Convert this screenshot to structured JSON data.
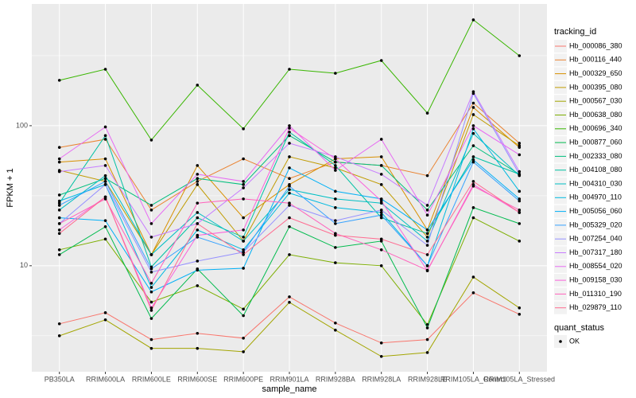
{
  "chart_data": {
    "type": "line",
    "x_label": "sample_name",
    "y_label": "FPKM + 1",
    "legend_title": "tracking_id",
    "point_legend": {
      "title": "quant_status",
      "labels": [
        "OK"
      ],
      "color": "#000000"
    },
    "log_scale": true,
    "grid": true,
    "ylim": [
      1.75,
      740
    ],
    "yticks": [
      10,
      100
    ],
    "categories": [
      "PB350LA",
      "RRIM600LA",
      "RRIM600LE",
      "RRIM600SE",
      "RRIM600PE",
      "RRIM901LA",
      "RRIM928BA",
      "RRIM928LA",
      "RRIM928LE",
      "RRIM105LA_Control",
      "RRIM105LA_Stressed"
    ],
    "series": [
      {
        "name": "Hb_000086_380",
        "color": "#F8766D",
        "values": [
          3.85,
          4.62,
          2.97,
          3.29,
          3.04,
          6.0,
          3.9,
          2.81,
          2.97,
          6.41,
          4.5
        ]
      },
      {
        "name": "Hb_000116_440",
        "color": "#EA8331",
        "values": [
          70,
          80,
          25,
          40,
          58,
          42,
          55,
          52,
          44,
          145,
          75
        ]
      },
      {
        "name": "Hb_000329_650",
        "color": "#D89000",
        "values": [
          55,
          58,
          12,
          52,
          22,
          38,
          58,
          60,
          18,
          135,
          70
        ]
      },
      {
        "name": "Hb_000395_080",
        "color": "#C09B00",
        "values": [
          48,
          40,
          12,
          38,
          15,
          60,
          50,
          38,
          16,
          120,
          72
        ]
      },
      {
        "name": "Hb_000567_030",
        "color": "#A3A500",
        "values": [
          3.16,
          4.11,
          2.57,
          2.57,
          2.43,
          5.48,
          3.47,
          2.25,
          2.4,
          8.3,
          5.0
        ]
      },
      {
        "name": "Hb_000638_080",
        "color": "#7CAE00",
        "values": [
          13,
          15.5,
          5.5,
          7.2,
          4.9,
          12,
          10.5,
          10,
          3.8,
          22,
          15
        ]
      },
      {
        "name": "Hb_000696_340",
        "color": "#39B600",
        "values": [
          211,
          253,
          79,
          195,
          95,
          253,
          237,
          292,
          123,
          570,
          316
        ]
      },
      {
        "name": "Hb_000877_060",
        "color": "#00BB4E",
        "values": [
          12,
          19,
          4.2,
          9.5,
          4.4,
          19,
          13.5,
          15,
          3.6,
          26,
          20
        ]
      },
      {
        "name": "Hb_002333_080",
        "color": "#00BF7D",
        "values": [
          32,
          42,
          27,
          42,
          38,
          85,
          55,
          52,
          25,
          72,
          45
        ]
      },
      {
        "name": "Hb_004108_080",
        "color": "#00C1A3",
        "values": [
          28,
          85,
          9.8,
          22,
          16,
          90,
          52,
          22,
          17,
          60,
          45
        ]
      },
      {
        "name": "Hb_004310_030",
        "color": "#00BFC4",
        "values": [
          25,
          44,
          12,
          24,
          15,
          35,
          30,
          28,
          15,
          88,
          44
        ]
      },
      {
        "name": "Hb_004970_110",
        "color": "#00BAE0",
        "values": [
          29,
          38,
          7,
          18,
          13,
          33,
          26,
          24,
          10,
          95,
          34
        ]
      },
      {
        "name": "Hb_005056_060",
        "color": "#00B0F6",
        "values": [
          22,
          21,
          6.5,
          9.3,
          9.6,
          50,
          34,
          30,
          18,
          57,
          30
        ]
      },
      {
        "name": "Hb_005329_020",
        "color": "#35A2FF",
        "values": [
          27,
          40,
          9.5,
          16,
          12.5,
          37,
          20,
          23,
          10,
          55,
          29
        ]
      },
      {
        "name": "Hb_007254_040",
        "color": "#9590FF",
        "values": [
          20,
          38,
          9,
          10.8,
          12.5,
          27,
          21,
          25,
          14,
          170,
          45
        ]
      },
      {
        "name": "Hb_007317_180",
        "color": "#C77CFF",
        "values": [
          47,
          52,
          16,
          20,
          36,
          75,
          60,
          45,
          27,
          175,
          47
        ]
      },
      {
        "name": "Hb_008554_020",
        "color": "#E76BF3",
        "values": [
          58,
          98,
          20,
          45,
          40,
          100,
          48,
          80,
          23,
          100,
          62
        ]
      },
      {
        "name": "Hb_009158_030",
        "color": "#FA62DB",
        "values": [
          18,
          31,
          5,
          16.5,
          18,
          96,
          58,
          29,
          9.2,
          38,
          24
        ]
      },
      {
        "name": "Hb_011310_190",
        "color": "#FF62BC",
        "values": [
          20,
          30,
          7.5,
          28,
          30,
          28,
          17,
          13,
          9.3,
          37,
          25
        ]
      },
      {
        "name": "Hb_029879_110",
        "color": "#FF6C91",
        "values": [
          17,
          31,
          4.8,
          20,
          12,
          22,
          16.5,
          15.5,
          12,
          40,
          24
        ]
      }
    ]
  }
}
